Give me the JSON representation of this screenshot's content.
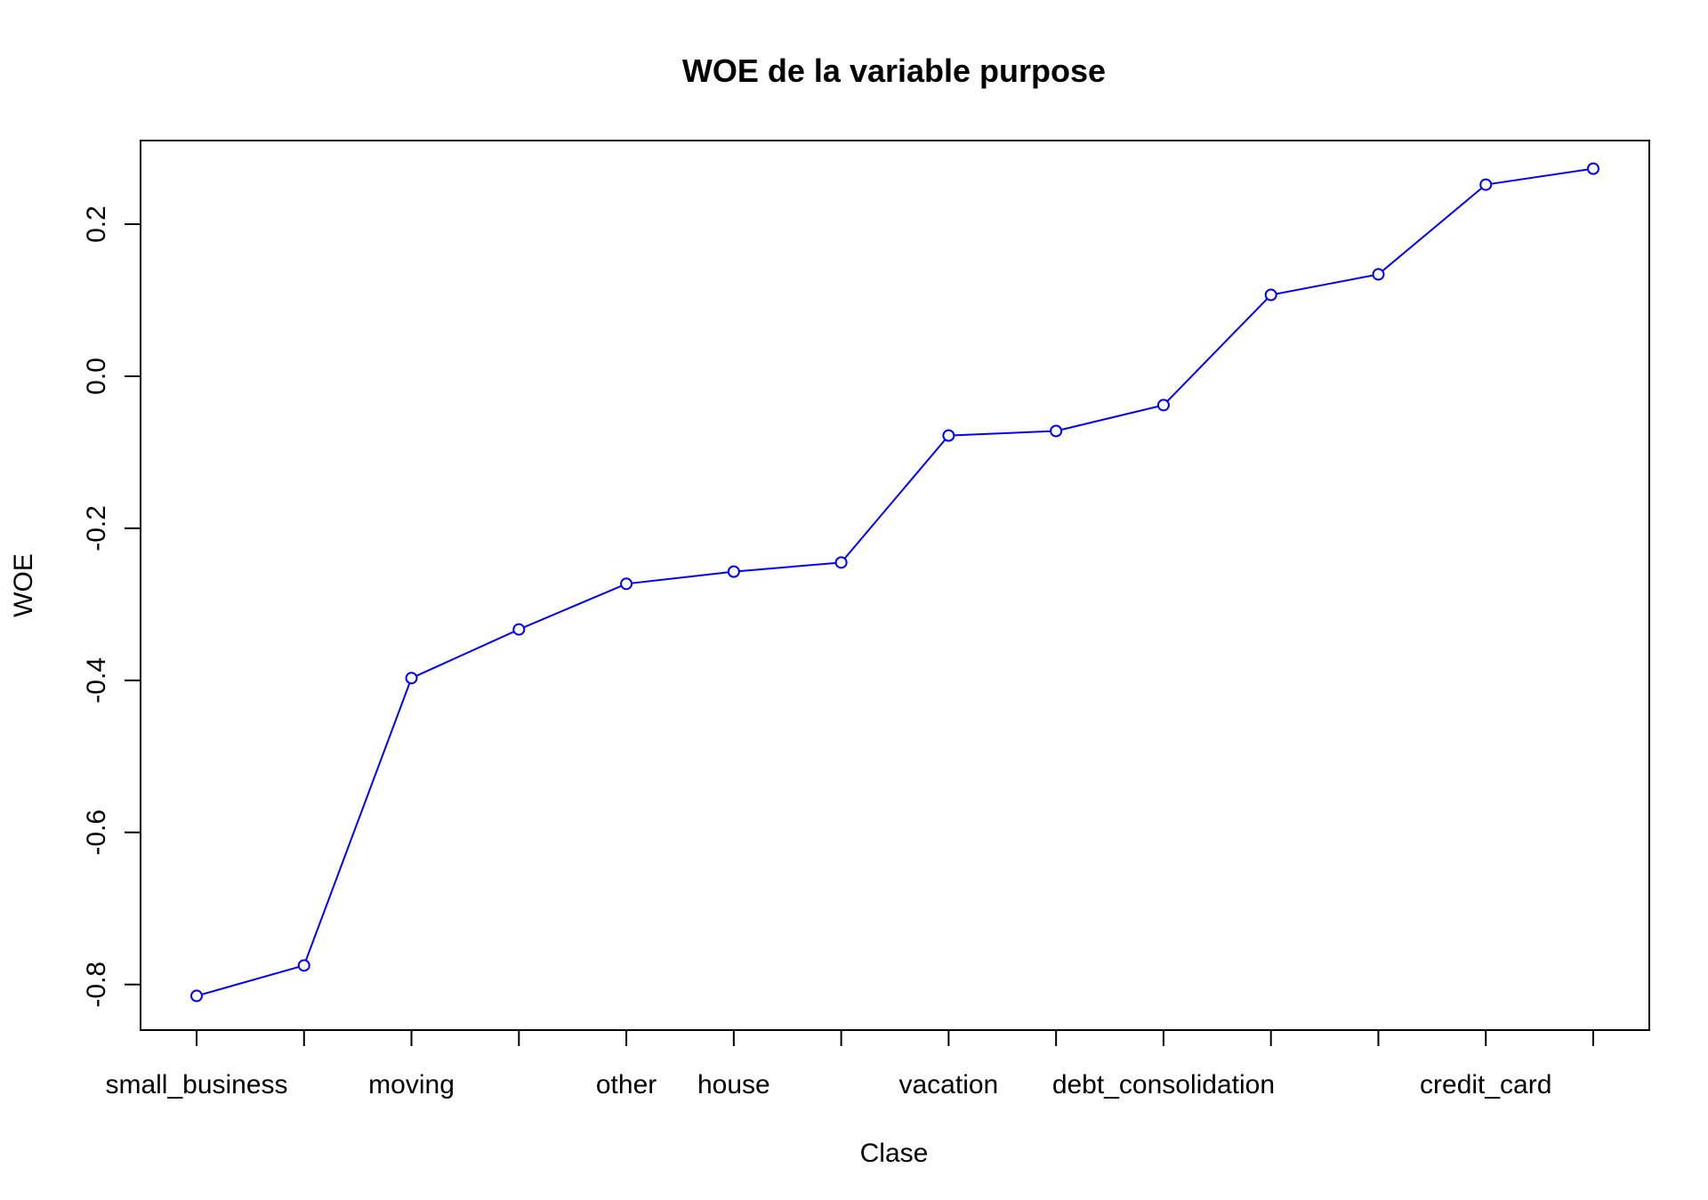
{
  "chart_data": {
    "type": "line",
    "title": "WOE de la variable purpose",
    "xlabel": "Clase",
    "ylabel": "WOE",
    "categories": [
      "small_business",
      "",
      "moving",
      "",
      "other",
      "house",
      "",
      "vacation",
      "",
      "debt_consolidation",
      "",
      "",
      "credit_card",
      ""
    ],
    "series": [
      {
        "values": [
          -0.815,
          -0.775,
          -0.397,
          -0.333,
          -0.273,
          -0.257,
          -0.245,
          -0.078,
          -0.072,
          -0.038,
          0.107,
          0.134,
          0.252,
          0.273
        ]
      }
    ],
    "ylim": [
      -0.86,
      0.31
    ],
    "yticks": [
      -0.8,
      -0.6,
      -0.4,
      -0.2,
      0.0,
      0.2
    ],
    "ytick_labels": [
      "-0.8",
      "-0.6",
      "-0.4",
      "-0.2",
      "0.0",
      "0.2"
    ],
    "line_color": "#0000ff",
    "marker": "open-circle",
    "grid": false,
    "legend": "none"
  }
}
